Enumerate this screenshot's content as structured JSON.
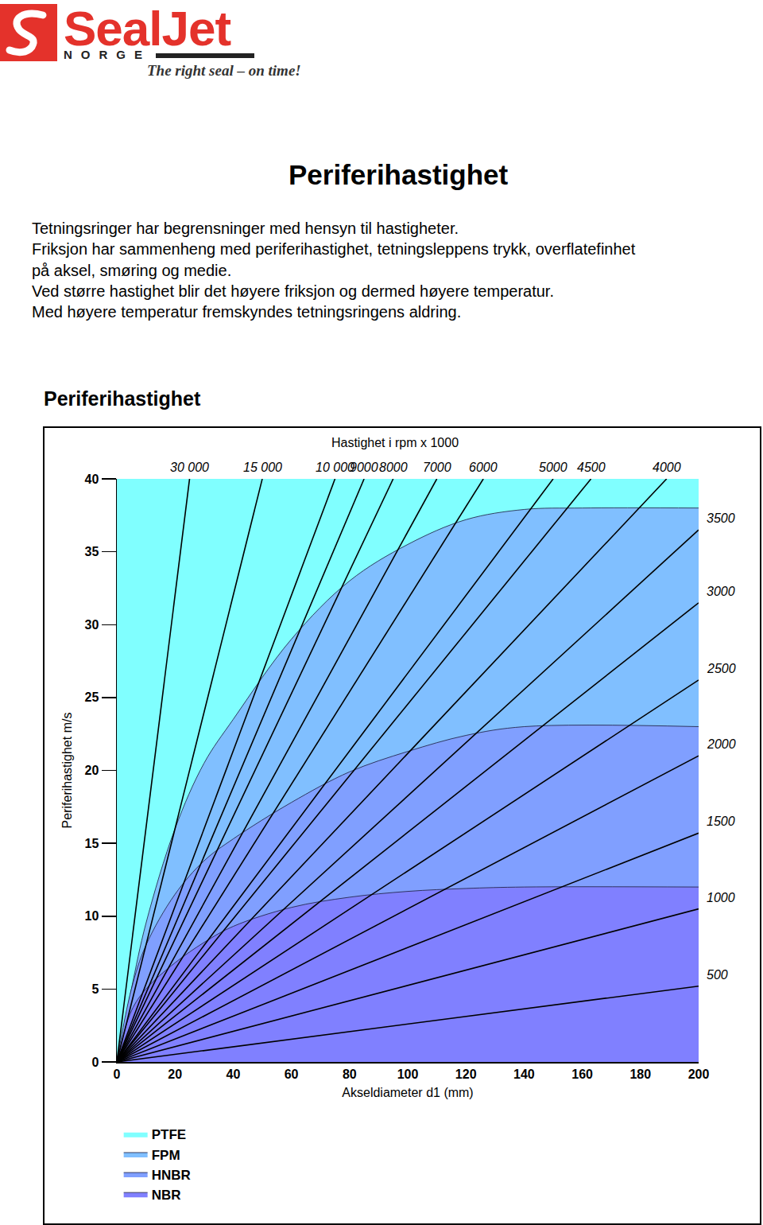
{
  "header": {
    "logo": "SealJet",
    "logo_sub": "NORGE",
    "slogan": "The right seal – on time!"
  },
  "title": "Periferihastighet",
  "text_lines": [
    "Tetningsringer har begrensninger med hensyn til hastigheter.",
    "Friksjon har sammenheng med periferihastighet, tetningsleppens trykk, overflatefinhet",
    "på aksel, smøring og medie.",
    "Ved større hastighet blir det høyere friksjon og dermed høyere temperatur.",
    "Med høyere temperatur fremskyndes tetningsringens aldring."
  ],
  "chart_data": {
    "type": "area",
    "title": "Periferihastighet",
    "subtitle": "Hastighet i rpm x 1000",
    "x_label": "Akseldiameter d1 (mm)",
    "y_label": "Periferihastighet m/s",
    "xlim": [
      0,
      200
    ],
    "xticks": [
      0,
      20,
      40,
      60,
      80,
      100,
      120,
      140,
      160,
      180,
      200
    ],
    "ylim": [
      0,
      40
    ],
    "yticks": [
      0,
      5,
      10,
      15,
      20,
      25,
      30,
      35,
      40
    ],
    "grid": false,
    "legend": "bottom left",
    "series": [
      {
        "name": "PTFE",
        "color": "#80ffff",
        "x": [
          0,
          200
        ],
        "values": [
          40,
          40
        ]
      },
      {
        "name": "FPM",
        "color": "#80bfff",
        "x": [
          0,
          5,
          10,
          20,
          30,
          40,
          60,
          80,
          100,
          120,
          140,
          160,
          200
        ],
        "values": [
          0,
          5,
          9.5,
          16,
          20.5,
          23.5,
          29,
          33,
          35.5,
          37.2,
          37.9,
          38,
          38
        ]
      },
      {
        "name": "HNBR",
        "color": "#809fff",
        "x": [
          0,
          5,
          10,
          20,
          30,
          40,
          60,
          80,
          100,
          120,
          140,
          200
        ],
        "values": [
          0,
          5,
          8,
          11.5,
          13.8,
          15.3,
          17.8,
          19.9,
          21.3,
          22.4,
          23,
          23
        ]
      },
      {
        "name": "NBR",
        "color": "#8080ff",
        "x": [
          0,
          5,
          10,
          20,
          30,
          40,
          60,
          80,
          100,
          120,
          140,
          200
        ],
        "values": [
          0,
          3.5,
          5,
          6.8,
          8.2,
          9.3,
          10.6,
          11.3,
          11.7,
          11.9,
          12,
          12
        ]
      }
    ],
    "rpm_lines": [
      {
        "label": "30 000",
        "x": [
          0,
          25
        ],
        "values": [
          0,
          40
        ]
      },
      {
        "label": "15 000",
        "x": [
          0,
          50
        ],
        "values": [
          0,
          40
        ]
      },
      {
        "label": "10 000",
        "x": [
          0,
          75
        ],
        "values": [
          0,
          40
        ]
      },
      {
        "label": "9000",
        "x": [
          0,
          85
        ],
        "values": [
          0,
          40
        ]
      },
      {
        "label": "8000",
        "x": [
          0,
          95
        ],
        "values": [
          0,
          40
        ]
      },
      {
        "label": "7000",
        "x": [
          0,
          110
        ],
        "values": [
          0,
          40
        ]
      },
      {
        "label": "6000",
        "x": [
          0,
          126
        ],
        "values": [
          0,
          40
        ]
      },
      {
        "label": "5000",
        "x": [
          0,
          150
        ],
        "values": [
          0,
          40
        ]
      },
      {
        "label": "4500",
        "x": [
          0,
          163
        ],
        "values": [
          0,
          40
        ]
      },
      {
        "label": "4000",
        "x": [
          0,
          189
        ],
        "values": [
          0,
          40
        ]
      },
      {
        "label": "3500",
        "x": [
          0,
          200
        ],
        "values": [
          0,
          36.5
        ]
      },
      {
        "label": "3000",
        "x": [
          0,
          200
        ],
        "values": [
          0,
          31.5
        ]
      },
      {
        "label": "2500",
        "x": [
          0,
          200
        ],
        "values": [
          0,
          26.2
        ]
      },
      {
        "label": "2000",
        "x": [
          0,
          200
        ],
        "values": [
          0,
          21
        ]
      },
      {
        "label": "1500",
        "x": [
          0,
          200
        ],
        "values": [
          0,
          15.7
        ]
      },
      {
        "label": "1000",
        "x": [
          0,
          200
        ],
        "values": [
          0,
          10.5
        ]
      },
      {
        "label": "500",
        "x": [
          0,
          200
        ],
        "values": [
          0,
          5.2
        ]
      }
    ]
  }
}
